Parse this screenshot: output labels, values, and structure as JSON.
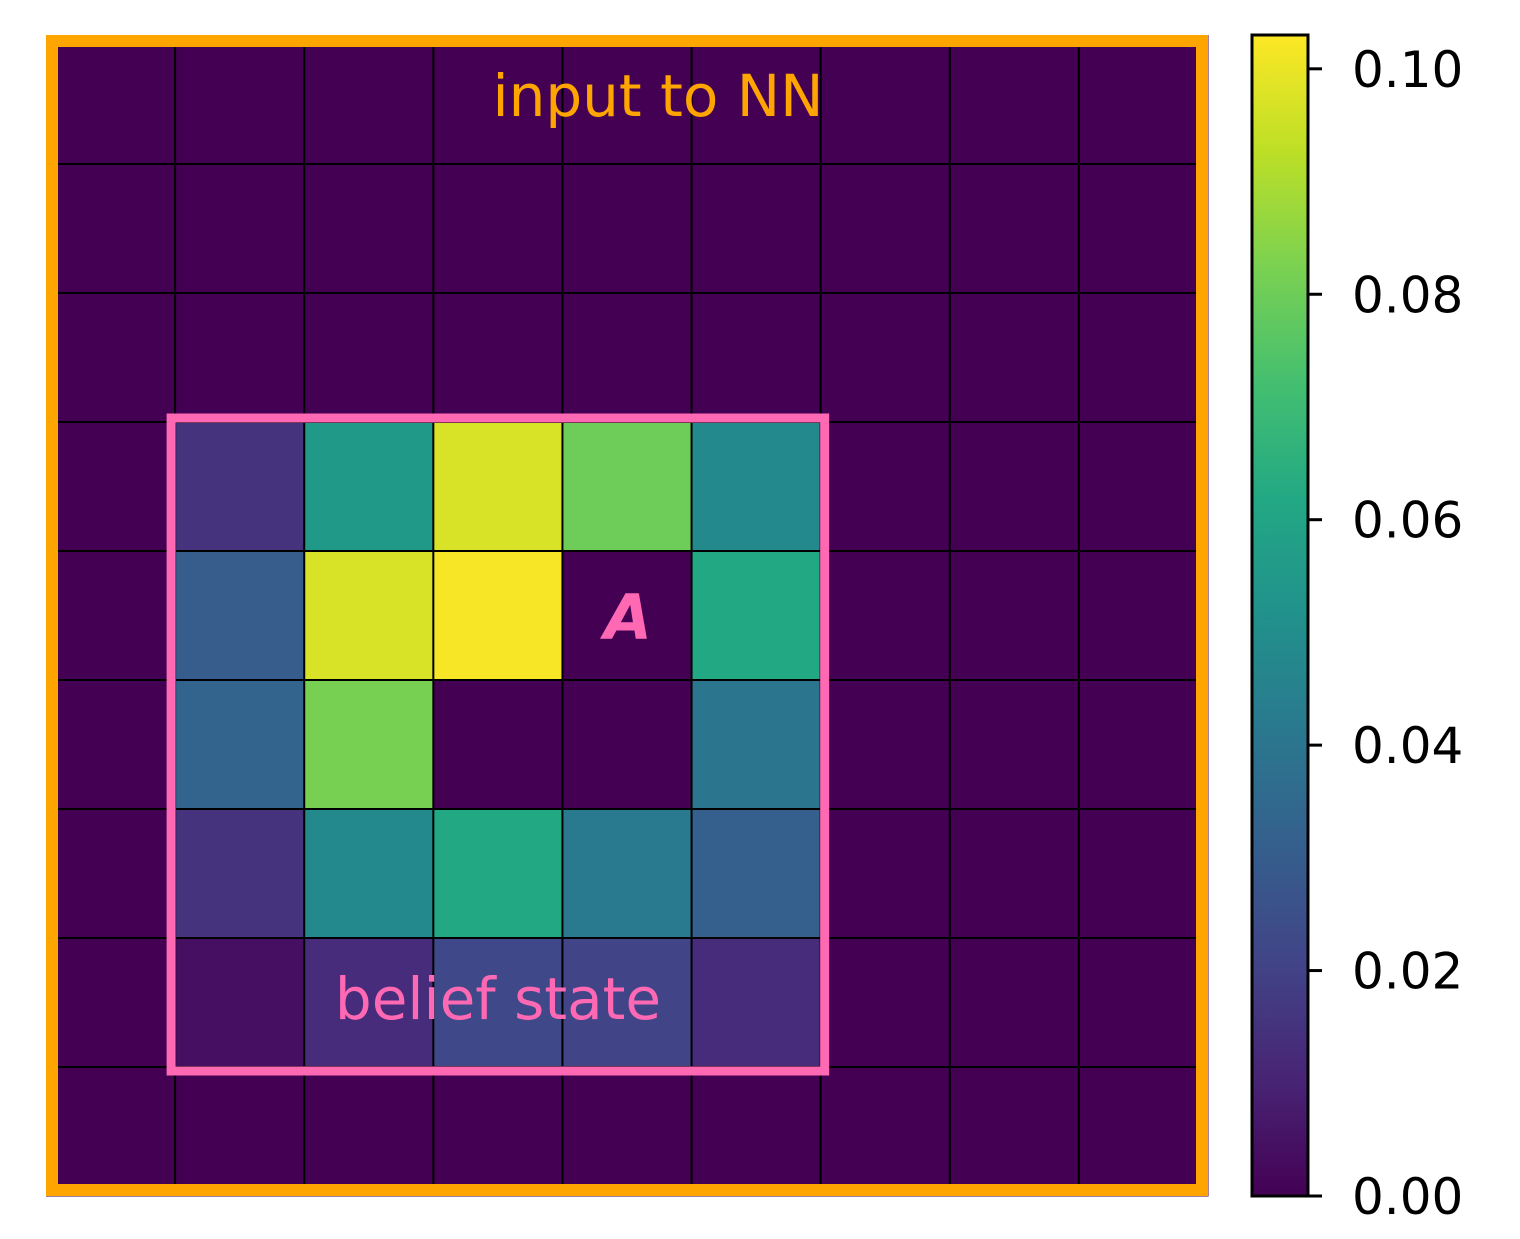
{
  "chart_data": {
    "type": "heatmap",
    "title": "",
    "xlabel": "",
    "ylabel": "",
    "rows": 9,
    "cols": 9,
    "values": [
      [
        0,
        0,
        0,
        0,
        0,
        0,
        0,
        0,
        0
      ],
      [
        0,
        0,
        0,
        0,
        0,
        0,
        0,
        0,
        0
      ],
      [
        0,
        0,
        0,
        0,
        0,
        0,
        0,
        0,
        0
      ],
      [
        0,
        0.015,
        0.055,
        0.097,
        0.08,
        0.048,
        0,
        0,
        0
      ],
      [
        0,
        0.03,
        0.097,
        0.102,
        0,
        0.062,
        0,
        0,
        0
      ],
      [
        0,
        0.033,
        0.082,
        0,
        0,
        0.04,
        0,
        0,
        0
      ],
      [
        0,
        0.015,
        0.048,
        0.062,
        0.042,
        0.031,
        0,
        0,
        0
      ],
      [
        0,
        0.004,
        0.013,
        0.022,
        0.021,
        0.013,
        0,
        0,
        0
      ],
      [
        0,
        0,
        0,
        0,
        0,
        0,
        0,
        0,
        0
      ]
    ],
    "colormap": "viridis",
    "vmin": 0,
    "vmax": 0.103,
    "colorbar": {
      "ticks": [
        0.0,
        0.02,
        0.04,
        0.06,
        0.08,
        0.1
      ],
      "tick_labels": [
        "0.00",
        "0.02",
        "0.04",
        "0.06",
        "0.08",
        "0.10"
      ]
    },
    "grid": true,
    "annotations": {
      "outer_label": "input to NN",
      "inner_label": "belief state",
      "agent_label": "A",
      "agent_cell": [
        4,
        4
      ],
      "inner_region": {
        "row_start": 3,
        "row_end": 7,
        "col_start": 1,
        "col_end": 5
      }
    },
    "colors": {
      "outer_border": "#FFA500",
      "inner_border": "#FF69B4",
      "grid_line": "#000000"
    }
  }
}
